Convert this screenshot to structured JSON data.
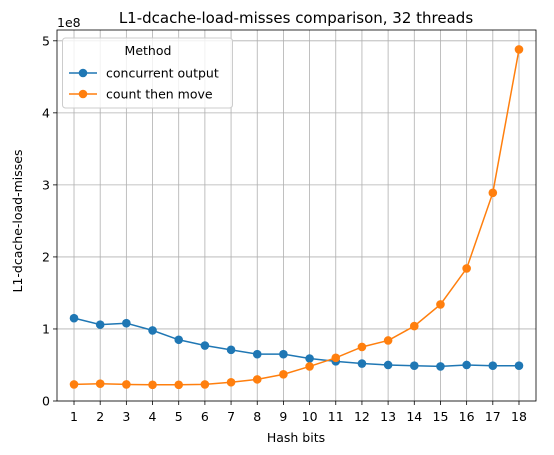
{
  "chart_data": {
    "type": "line",
    "title": "L1-dcache-load-misses comparison, 32 threads",
    "xlabel": "Hash bits",
    "ylabel": "L1-dcache-load-misses",
    "y_scale_label": "1e8",
    "x": [
      1,
      2,
      3,
      4,
      5,
      6,
      7,
      8,
      9,
      10,
      11,
      12,
      13,
      14,
      15,
      16,
      17,
      18
    ],
    "xlim": [
      0.35,
      18.65
    ],
    "ylim": [
      0,
      5.15
    ],
    "y_ticks": [
      0,
      1,
      2,
      3,
      4,
      5
    ],
    "grid": true,
    "legend": {
      "title": "Method",
      "position": "upper-left"
    },
    "series": [
      {
        "name": "concurrent output",
        "color": "#1f77b4",
        "values": [
          1.15,
          1.06,
          1.08,
          0.98,
          0.85,
          0.77,
          0.71,
          0.65,
          0.65,
          0.59,
          0.55,
          0.52,
          0.5,
          0.49,
          0.48,
          0.5,
          0.49,
          0.49
        ]
      },
      {
        "name": "count then move",
        "color": "#ff7f0e",
        "values": [
          0.23,
          0.24,
          0.23,
          0.225,
          0.225,
          0.23,
          0.26,
          0.3,
          0.37,
          0.48,
          0.6,
          0.75,
          0.84,
          1.04,
          1.34,
          1.84,
          2.89,
          4.88
        ]
      }
    ]
  }
}
